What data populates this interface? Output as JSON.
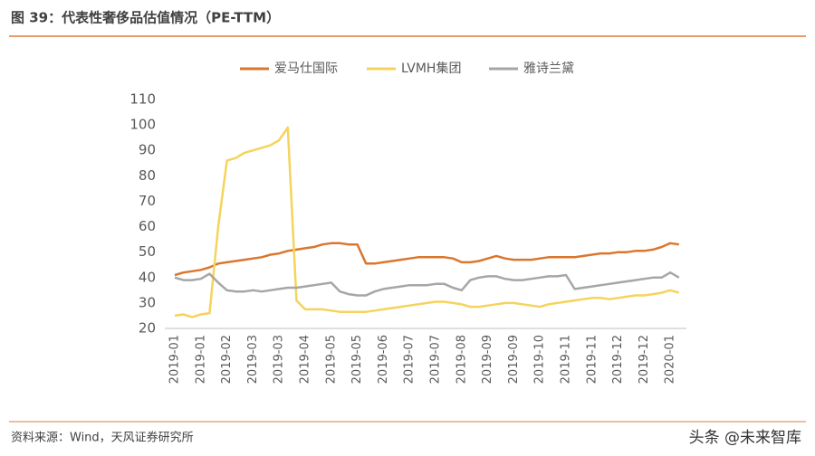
{
  "chart_data": {
    "type": "line",
    "title": "图 39：代表性奢侈品估值情况（PE-TTM）",
    "source": "资料来源：Wind，天风证券研究所",
    "watermark": "头条 @未来智库",
    "categories": [
      "2019-01",
      null,
      null,
      "2019-01",
      null,
      null,
      "2019-02",
      null,
      null,
      "2019-03",
      null,
      null,
      "2019-03",
      null,
      null,
      "2019-04",
      null,
      null,
      "2019-05",
      null,
      null,
      "2019-05",
      null,
      null,
      "2019-06",
      null,
      null,
      "2019-07",
      null,
      null,
      "2019-07",
      null,
      null,
      "2019-08",
      null,
      null,
      "2019-09",
      null,
      null,
      "2019-09",
      null,
      null,
      "2019-10",
      null,
      null,
      "2019-11",
      null,
      null,
      "2019-11",
      null,
      null,
      "2019-12",
      null,
      null,
      "2019-12",
      null,
      null,
      "2020-01",
      null
    ],
    "series": [
      {
        "name": "爱马仕国际",
        "color": "#d9772f",
        "values": [
          41,
          42,
          42.5,
          43,
          44,
          45.5,
          46,
          46.5,
          47,
          47.5,
          48,
          49,
          49.5,
          50.5,
          51,
          51.5,
          52,
          53,
          53.5,
          53.5,
          53,
          53,
          45.5,
          45.5,
          46,
          46.5,
          47,
          47.5,
          48,
          48,
          48,
          48,
          47.5,
          46,
          46,
          46.5,
          47.5,
          48.5,
          47.5,
          47,
          47,
          47,
          47.5,
          48,
          48,
          48,
          48,
          48.5,
          49,
          49.5,
          49.5,
          50,
          50,
          50.5,
          50.5,
          51,
          52,
          53.5,
          53
        ]
      },
      {
        "name": "LVMH集团",
        "color": "#f5d35c",
        "values": [
          25,
          25.5,
          24.5,
          25.5,
          26,
          60,
          86,
          87,
          89,
          90,
          91,
          92,
          94,
          99,
          31,
          27.5,
          27.5,
          27.5,
          27,
          26.5,
          26.5,
          26.5,
          26.5,
          27,
          27.5,
          28,
          28.5,
          29,
          29.5,
          30,
          30.5,
          30.5,
          30,
          29.5,
          28.5,
          28.5,
          29,
          29.5,
          30,
          30,
          29.5,
          29,
          28.5,
          29.5,
          30,
          30.5,
          31,
          31.5,
          32,
          32,
          31.5,
          32,
          32.5,
          33,
          33,
          33.5,
          34,
          35,
          34
        ]
      },
      {
        "name": "雅诗兰黛",
        "color": "#a6a6a6",
        "values": [
          40,
          39,
          39,
          39.5,
          41.5,
          38,
          35,
          34.5,
          34.5,
          35,
          34.5,
          35,
          35.5,
          36,
          36,
          36.5,
          37,
          37.5,
          38,
          34.5,
          33.5,
          33,
          33,
          34.5,
          35.5,
          36,
          36.5,
          37,
          37,
          37,
          37.5,
          37.5,
          36,
          35,
          39,
          40,
          40.5,
          40.5,
          39.5,
          39,
          39,
          39.5,
          40,
          40.5,
          40.5,
          41,
          35.5,
          36,
          36.5,
          37,
          37.5,
          38,
          38.5,
          39,
          39.5,
          40,
          40,
          42,
          40
        ]
      }
    ],
    "ylim": [
      20,
      110
    ],
    "yticks": [
      20,
      30,
      40,
      50,
      60,
      70,
      80,
      90,
      100,
      110
    ]
  }
}
